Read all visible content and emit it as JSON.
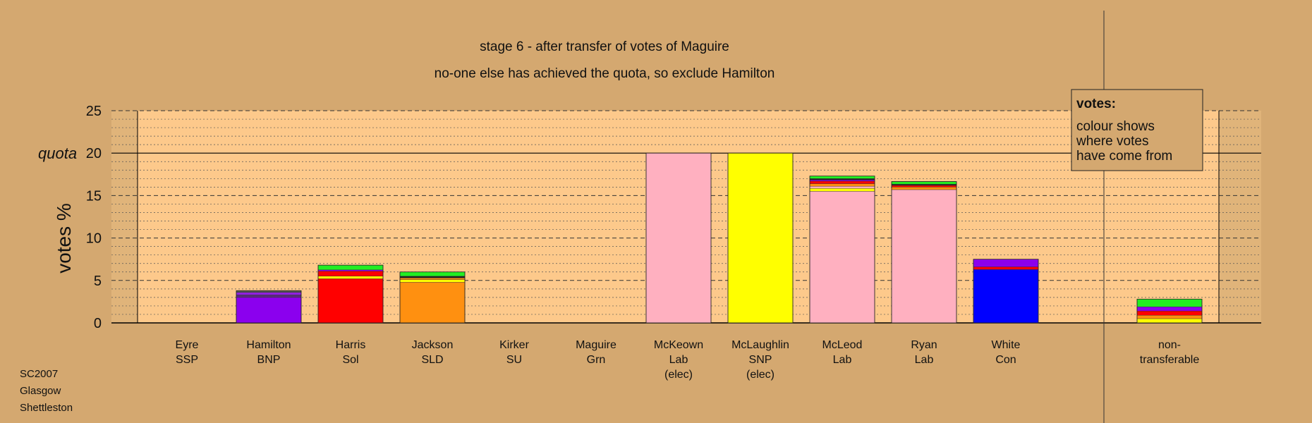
{
  "chart_data": {
    "type": "bar",
    "stacked": true,
    "title": "stage 6 - after transfer of votes of Maguire",
    "subtitle": "no-one else has achieved the quota, so exclude Hamilton",
    "ylabel": "votes %",
    "ylim": [
      0,
      25
    ],
    "yticks": [
      "0",
      "5",
      "10",
      "15",
      "20",
      "25"
    ],
    "quota_label": "quota",
    "quota_value": 20,
    "grid": true,
    "legend": {
      "position": "top-right",
      "title": "votes:",
      "lines": [
        "colour shows",
        "where votes",
        "have come from"
      ]
    },
    "categories": [
      {
        "lines": [
          "Eyre",
          "SSP"
        ],
        "segments": []
      },
      {
        "lines": [
          "Hamilton",
          "BNP"
        ],
        "segments": [
          {
            "value": 3.0,
            "color": "#8b00ee"
          },
          {
            "value": 0.3,
            "color": "#5a2a80"
          },
          {
            "value": 0.3,
            "color": "#9020e0"
          },
          {
            "value": 0.2,
            "color": "#555555"
          }
        ]
      },
      {
        "lines": [
          "Harris",
          "Sol"
        ],
        "segments": [
          {
            "value": 5.2,
            "color": "#ff0000"
          },
          {
            "value": 0.3,
            "color": "#ffff00"
          },
          {
            "value": 0.6,
            "color": "#ff0000"
          },
          {
            "value": 0.15,
            "color": "#8b00ee"
          },
          {
            "value": 0.55,
            "color": "#22ee22"
          }
        ]
      },
      {
        "lines": [
          "Jackson",
          "SLD"
        ],
        "segments": [
          {
            "value": 4.8,
            "color": "#ff9010"
          },
          {
            "value": 0.3,
            "color": "#ffff00"
          },
          {
            "value": 0.2,
            "color": "#ff9010"
          },
          {
            "value": 0.2,
            "color": "#222222"
          },
          {
            "value": 0.5,
            "color": "#22ee22"
          }
        ]
      },
      {
        "lines": [
          "Kirker",
          "SU"
        ],
        "segments": []
      },
      {
        "lines": [
          "Maguire",
          "Grn"
        ],
        "segments": []
      },
      {
        "lines": [
          "McKeown",
          "Lab",
          "(elec)"
        ],
        "segments": [
          {
            "value": 20.0,
            "color": "#ffb0c0"
          }
        ]
      },
      {
        "lines": [
          "McLaughlin",
          "SNP",
          "(elec)"
        ],
        "segments": [
          {
            "value": 20.0,
            "color": "#ffff00"
          }
        ]
      },
      {
        "lines": [
          "McLeod",
          "Lab"
        ],
        "segments": [
          {
            "value": 15.5,
            "color": "#ffb0c0"
          },
          {
            "value": 0.35,
            "color": "#ffff00"
          },
          {
            "value": 0.25,
            "color": "#ffb0c0"
          },
          {
            "value": 0.3,
            "color": "#ff9010"
          },
          {
            "value": 0.3,
            "color": "#ff0000"
          },
          {
            "value": 0.15,
            "color": "#8b00ee"
          },
          {
            "value": 0.15,
            "color": "#222222"
          },
          {
            "value": 0.3,
            "color": "#22ee22"
          }
        ]
      },
      {
        "lines": [
          "Ryan",
          "Lab"
        ],
        "segments": [
          {
            "value": 15.7,
            "color": "#ffb0c0"
          },
          {
            "value": 0.3,
            "color": "#ff9010"
          },
          {
            "value": 0.2,
            "color": "#ff0000"
          },
          {
            "value": 0.15,
            "color": "#222222"
          },
          {
            "value": 0.3,
            "color": "#22ee22"
          }
        ]
      },
      {
        "lines": [
          "White",
          "Con"
        ],
        "segments": [
          {
            "value": 6.3,
            "color": "#0000ff"
          },
          {
            "value": 0.3,
            "color": "#ff0000"
          },
          {
            "value": 0.9,
            "color": "#8b00ee"
          }
        ]
      },
      {
        "lines": [
          "non-",
          "transferable"
        ],
        "segments": [
          {
            "value": 0.5,
            "color": "#ffff00"
          },
          {
            "value": 0.4,
            "color": "#ff9010"
          },
          {
            "value": 0.5,
            "color": "#ff0000"
          },
          {
            "value": 0.5,
            "color": "#8b00ee"
          },
          {
            "value": 0.9,
            "color": "#22ee22"
          }
        ]
      }
    ]
  },
  "footer": {
    "lines": [
      "SC2007",
      "Glasgow",
      "Shettleston"
    ]
  },
  "colors": {
    "background": "#d4a870",
    "plot_background": "#fdc98b",
    "grid": "#555555",
    "quota_line": "#000000"
  }
}
